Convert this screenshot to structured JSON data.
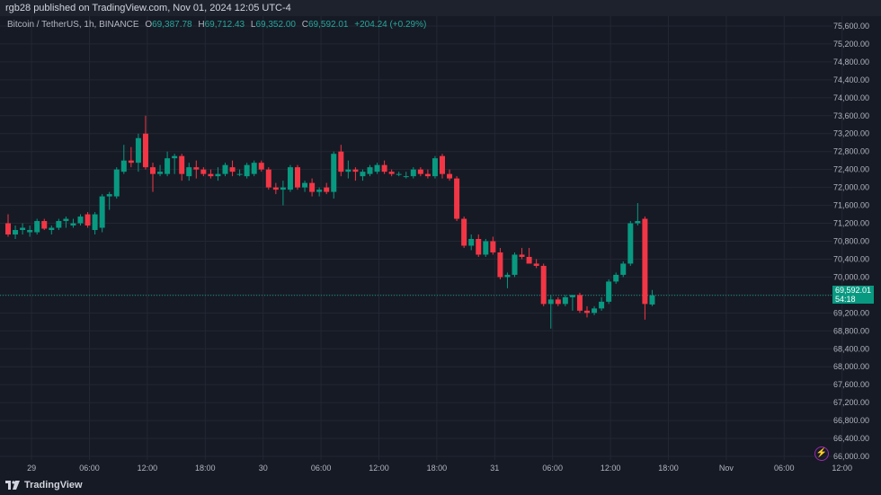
{
  "header": {
    "published_line": "rgb28 published on TradingView.com, Nov 01, 2024 12:05 UTC-4"
  },
  "legend": {
    "symbol": "Bitcoin / TetherUS, 1h, BINANCE",
    "o_label": "O",
    "o_value": "69,387.78",
    "h_label": "H",
    "h_value": "69,712.43",
    "l_label": "L",
    "l_value": "69,352.00",
    "c_label": "C",
    "c_value": "69,592.01",
    "change": "+204.24 (+0.29%)"
  },
  "last_price": {
    "price": "69,592.01",
    "countdown": "54:18"
  },
  "footer": {
    "brand": "TradingView"
  },
  "colors": {
    "background": "#161a25",
    "up": "#089981",
    "down": "#f23645",
    "grid": "#232733",
    "text": "#b2b5be"
  },
  "icons": {
    "logo": "tradingview-logo-icon",
    "bolt": "lightning-bolt-icon"
  },
  "chart_data": {
    "type": "candlestick",
    "symbol": "Bitcoin / TetherUS",
    "interval": "1h",
    "exchange": "BINANCE",
    "y_axis": {
      "ticks": [
        "66,000.00",
        "66,400.00",
        "66,800.00",
        "67,200.00",
        "67,600.00",
        "68,000.00",
        "68,400.00",
        "68,800.00",
        "69,200.00",
        "69,600.00",
        "70,000.00",
        "70,400.00",
        "70,800.00",
        "71,200.00",
        "71,600.00",
        "72,000.00",
        "72,400.00",
        "72,800.00",
        "73,200.00",
        "73,600.00",
        "74,000.00",
        "74,400.00",
        "74,800.00",
        "75,200.00",
        "75,600.00"
      ],
      "tick_values": [
        66000,
        66400,
        66800,
        67200,
        67600,
        68000,
        68400,
        68800,
        69200,
        69600,
        70000,
        70400,
        70800,
        71200,
        71600,
        72000,
        72400,
        72800,
        73200,
        73600,
        74000,
        74400,
        74800,
        75200,
        75600
      ],
      "range": [
        65920,
        75820
      ],
      "position": "right"
    },
    "x_axis": {
      "labels": [
        "29",
        "06:00",
        "12:00",
        "18:00",
        "30",
        "06:00",
        "12:00",
        "18:00",
        "31",
        "06:00",
        "12:00",
        "18:00",
        "Nov",
        "06:00",
        "12:00"
      ],
      "label_bar_index": [
        2,
        10,
        18,
        26,
        34,
        42,
        50,
        58,
        66,
        74,
        82,
        90,
        98,
        106,
        114
      ]
    },
    "grid": true,
    "last_price": 69592.01,
    "candles": [
      {
        "o": 71200,
        "h": 71400,
        "l": 70900,
        "c": 70950
      },
      {
        "o": 70950,
        "h": 71150,
        "l": 70850,
        "c": 71050
      },
      {
        "o": 71050,
        "h": 71200,
        "l": 70950,
        "c": 71100
      },
      {
        "o": 71000,
        "h": 71150,
        "l": 70900,
        "c": 71050
      },
      {
        "o": 71000,
        "h": 71300,
        "l": 70950,
        "c": 71250
      },
      {
        "o": 71250,
        "h": 71300,
        "l": 71050,
        "c": 71080
      },
      {
        "o": 71050,
        "h": 71150,
        "l": 70950,
        "c": 71100
      },
      {
        "o": 71100,
        "h": 71300,
        "l": 71050,
        "c": 71250
      },
      {
        "o": 71250,
        "h": 71350,
        "l": 71100,
        "c": 71300
      },
      {
        "o": 71150,
        "h": 71300,
        "l": 71100,
        "c": 71200
      },
      {
        "o": 71200,
        "h": 71400,
        "l": 71150,
        "c": 71350
      },
      {
        "o": 71400,
        "h": 71450,
        "l": 71100,
        "c": 71150
      },
      {
        "o": 71050,
        "h": 71450,
        "l": 70950,
        "c": 71400
      },
      {
        "o": 71100,
        "h": 71850,
        "l": 71000,
        "c": 71800
      },
      {
        "o": 71800,
        "h": 71900,
        "l": 71500,
        "c": 71850
      },
      {
        "o": 71800,
        "h": 72450,
        "l": 71750,
        "c": 72400
      },
      {
        "o": 72350,
        "h": 72950,
        "l": 72300,
        "c": 72600
      },
      {
        "o": 72600,
        "h": 72900,
        "l": 72450,
        "c": 72550
      },
      {
        "o": 72550,
        "h": 73200,
        "l": 72350,
        "c": 73100
      },
      {
        "o": 73200,
        "h": 73600,
        "l": 72400,
        "c": 72450
      },
      {
        "o": 72450,
        "h": 72550,
        "l": 71900,
        "c": 72300
      },
      {
        "o": 72300,
        "h": 72500,
        "l": 72250,
        "c": 72350
      },
      {
        "o": 72300,
        "h": 72800,
        "l": 72250,
        "c": 72650
      },
      {
        "o": 72650,
        "h": 72750,
        "l": 72300,
        "c": 72700
      },
      {
        "o": 72700,
        "h": 72750,
        "l": 72150,
        "c": 72300
      },
      {
        "o": 72250,
        "h": 72550,
        "l": 72150,
        "c": 72450
      },
      {
        "o": 72450,
        "h": 72600,
        "l": 72200,
        "c": 72400
      },
      {
        "o": 72400,
        "h": 72450,
        "l": 72250,
        "c": 72300
      },
      {
        "o": 72300,
        "h": 72400,
        "l": 72200,
        "c": 72250
      },
      {
        "o": 72250,
        "h": 72450,
        "l": 72150,
        "c": 72300
      },
      {
        "o": 72300,
        "h": 72550,
        "l": 72250,
        "c": 72500
      },
      {
        "o": 72450,
        "h": 72600,
        "l": 72250,
        "c": 72350
      },
      {
        "o": 72300,
        "h": 72400,
        "l": 72250,
        "c": 72300
      },
      {
        "o": 72250,
        "h": 72550,
        "l": 72200,
        "c": 72500
      },
      {
        "o": 72300,
        "h": 72600,
        "l": 72250,
        "c": 72550
      },
      {
        "o": 72550,
        "h": 72600,
        "l": 72350,
        "c": 72400
      },
      {
        "o": 72400,
        "h": 72450,
        "l": 71950,
        "c": 72000
      },
      {
        "o": 72000,
        "h": 72100,
        "l": 71850,
        "c": 71950
      },
      {
        "o": 71950,
        "h": 72150,
        "l": 71600,
        "c": 72000
      },
      {
        "o": 71950,
        "h": 72500,
        "l": 71900,
        "c": 72450
      },
      {
        "o": 72450,
        "h": 72500,
        "l": 71950,
        "c": 72000
      },
      {
        "o": 72000,
        "h": 72150,
        "l": 71900,
        "c": 72100
      },
      {
        "o": 72100,
        "h": 72200,
        "l": 71800,
        "c": 71900
      },
      {
        "o": 71900,
        "h": 72000,
        "l": 71800,
        "c": 71950
      },
      {
        "o": 72000,
        "h": 72100,
        "l": 71850,
        "c": 71900
      },
      {
        "o": 71900,
        "h": 72800,
        "l": 71750,
        "c": 72750
      },
      {
        "o": 72800,
        "h": 72950,
        "l": 72250,
        "c": 72350
      },
      {
        "o": 72350,
        "h": 72600,
        "l": 72200,
        "c": 72400
      },
      {
        "o": 72400,
        "h": 72450,
        "l": 72150,
        "c": 72350
      },
      {
        "o": 72250,
        "h": 72400,
        "l": 72150,
        "c": 72350
      },
      {
        "o": 72300,
        "h": 72500,
        "l": 72250,
        "c": 72450
      },
      {
        "o": 72350,
        "h": 72550,
        "l": 72300,
        "c": 72500
      },
      {
        "o": 72500,
        "h": 72600,
        "l": 72300,
        "c": 72350
      },
      {
        "o": 72350,
        "h": 72400,
        "l": 72250,
        "c": 72300
      },
      {
        "o": 72300,
        "h": 72350,
        "l": 72250,
        "c": 72300
      },
      {
        "o": 72250,
        "h": 72350,
        "l": 72200,
        "c": 72250
      },
      {
        "o": 72250,
        "h": 72450,
        "l": 72200,
        "c": 72400
      },
      {
        "o": 72400,
        "h": 72450,
        "l": 72250,
        "c": 72300
      },
      {
        "o": 72300,
        "h": 72400,
        "l": 72200,
        "c": 72250
      },
      {
        "o": 72250,
        "h": 72700,
        "l": 72200,
        "c": 72650
      },
      {
        "o": 72700,
        "h": 72750,
        "l": 72200,
        "c": 72300
      },
      {
        "o": 72300,
        "h": 72400,
        "l": 72150,
        "c": 72200
      },
      {
        "o": 72200,
        "h": 72250,
        "l": 71250,
        "c": 71300
      },
      {
        "o": 71300,
        "h": 71350,
        "l": 70650,
        "c": 70700
      },
      {
        "o": 70700,
        "h": 70950,
        "l": 70600,
        "c": 70850
      },
      {
        "o": 70850,
        "h": 70950,
        "l": 70450,
        "c": 70500
      },
      {
        "o": 70500,
        "h": 70850,
        "l": 70450,
        "c": 70800
      },
      {
        "o": 70800,
        "h": 70900,
        "l": 70500,
        "c": 70550
      },
      {
        "o": 70550,
        "h": 70650,
        "l": 69950,
        "c": 70000
      },
      {
        "o": 70000,
        "h": 70100,
        "l": 69750,
        "c": 70050
      },
      {
        "o": 70050,
        "h": 70550,
        "l": 70000,
        "c": 70500
      },
      {
        "o": 70500,
        "h": 70650,
        "l": 70400,
        "c": 70450
      },
      {
        "o": 70450,
        "h": 70650,
        "l": 70350,
        "c": 70300
      },
      {
        "o": 70300,
        "h": 70400,
        "l": 70200,
        "c": 70250
      },
      {
        "o": 70250,
        "h": 70300,
        "l": 69350,
        "c": 69400
      },
      {
        "o": 69400,
        "h": 69600,
        "l": 68850,
        "c": 69500
      },
      {
        "o": 69500,
        "h": 69550,
        "l": 69350,
        "c": 69400
      },
      {
        "o": 69400,
        "h": 69600,
        "l": 69350,
        "c": 69550
      },
      {
        "o": 69550,
        "h": 69600,
        "l": 69250,
        "c": 69600
      },
      {
        "o": 69600,
        "h": 69650,
        "l": 69200,
        "c": 69250
      },
      {
        "o": 69250,
        "h": 69350,
        "l": 69100,
        "c": 69200
      },
      {
        "o": 69200,
        "h": 69350,
        "l": 69150,
        "c": 69300
      },
      {
        "o": 69300,
        "h": 69550,
        "l": 69250,
        "c": 69450
      },
      {
        "o": 69450,
        "h": 69950,
        "l": 69400,
        "c": 69900
      },
      {
        "o": 69900,
        "h": 70100,
        "l": 69850,
        "c": 70050
      },
      {
        "o": 70050,
        "h": 70350,
        "l": 70000,
        "c": 70300
      },
      {
        "o": 70300,
        "h": 71250,
        "l": 70250,
        "c": 71200
      },
      {
        "o": 71200,
        "h": 71650,
        "l": 71150,
        "c": 71250
      },
      {
        "o": 71300,
        "h": 71350,
        "l": 69050,
        "c": 69400
      },
      {
        "o": 69387.78,
        "h": 69712.43,
        "l": 69352.0,
        "c": 69592.01
      }
    ]
  }
}
